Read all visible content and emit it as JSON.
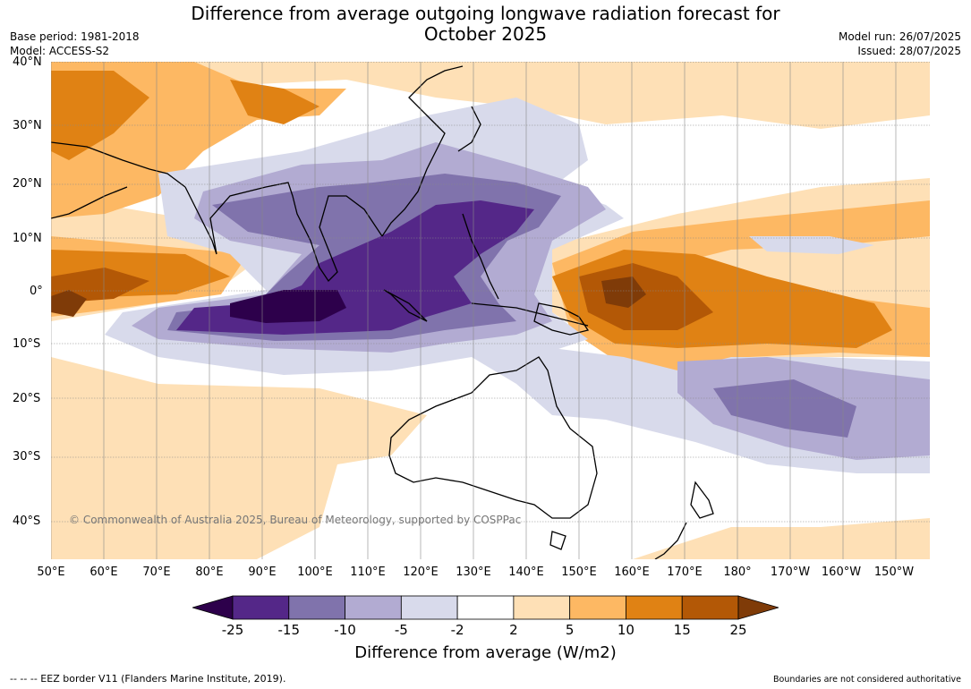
{
  "title_line1": "Difference from average outgoing longwave radiation forecast for",
  "title_line2": "October 2025",
  "base_period": "Base period: 1981-2018",
  "model": "Model: ACCESS-S2",
  "model_run": "Model run: 26/07/2025",
  "issued": "Issued: 28/07/2025",
  "lat_labels": [
    "40°N",
    "30°N",
    "20°N",
    "10°N",
    "0°",
    "10°S",
    "20°S",
    "30°S",
    "40°S"
  ],
  "lon_labels": [
    "50°E",
    "60°E",
    "70°E",
    "80°E",
    "90°E",
    "100°E",
    "110°E",
    "120°E",
    "130°E",
    "140°E",
    "150°E",
    "160°E",
    "170°E",
    "180°",
    "170°W",
    "160°W",
    "150°W"
  ],
  "copyright": "© Commonwealth of Australia 2025, Bureau of Meteorology, supported by COSPPac",
  "colorbar": {
    "ticks": [
      "-25",
      "-15",
      "-10",
      "-5",
      "-2",
      "2",
      "5",
      "10",
      "15",
      "25"
    ],
    "colors": [
      "#2d004b",
      "#542788",
      "#8073ac",
      "#b2abd2",
      "#d8daeb",
      "#ffffff",
      "#fee0b6",
      "#fdb863",
      "#e08214",
      "#b35806",
      "#7f3b08"
    ],
    "label": "Difference from average (W/m2)"
  },
  "footer_left": "--  --  -- EEZ border V11 (Flanders Marine Institute, 2019).",
  "footer_right": "Boundaries are not considered authoritative"
}
